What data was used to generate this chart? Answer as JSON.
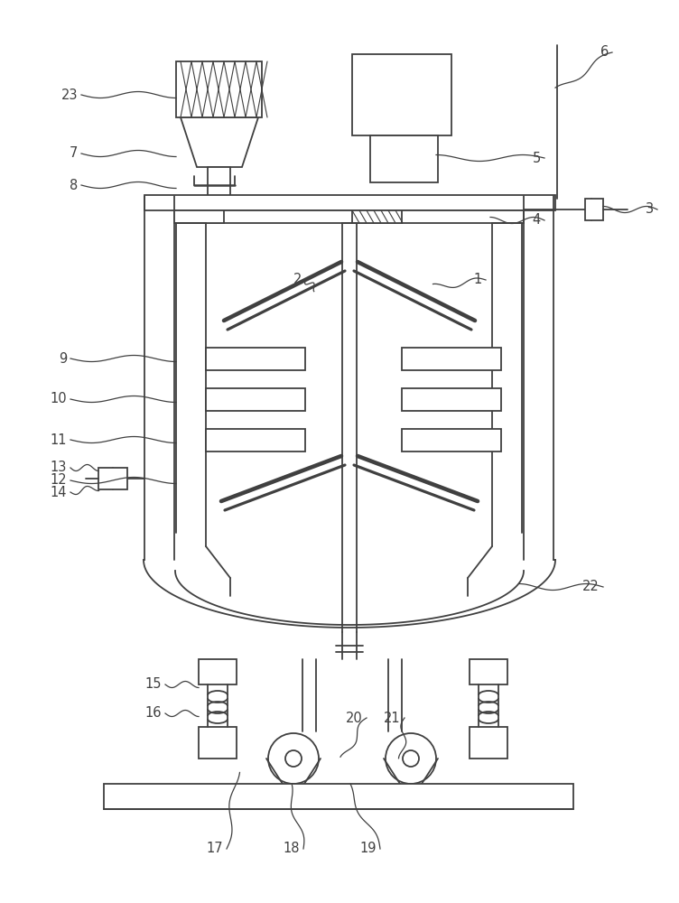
{
  "bg_color": "#ffffff",
  "lc": "#404040",
  "lw": 1.3,
  "fig_w": 7.52,
  "fig_h": 10.0,
  "dpi": 100
}
